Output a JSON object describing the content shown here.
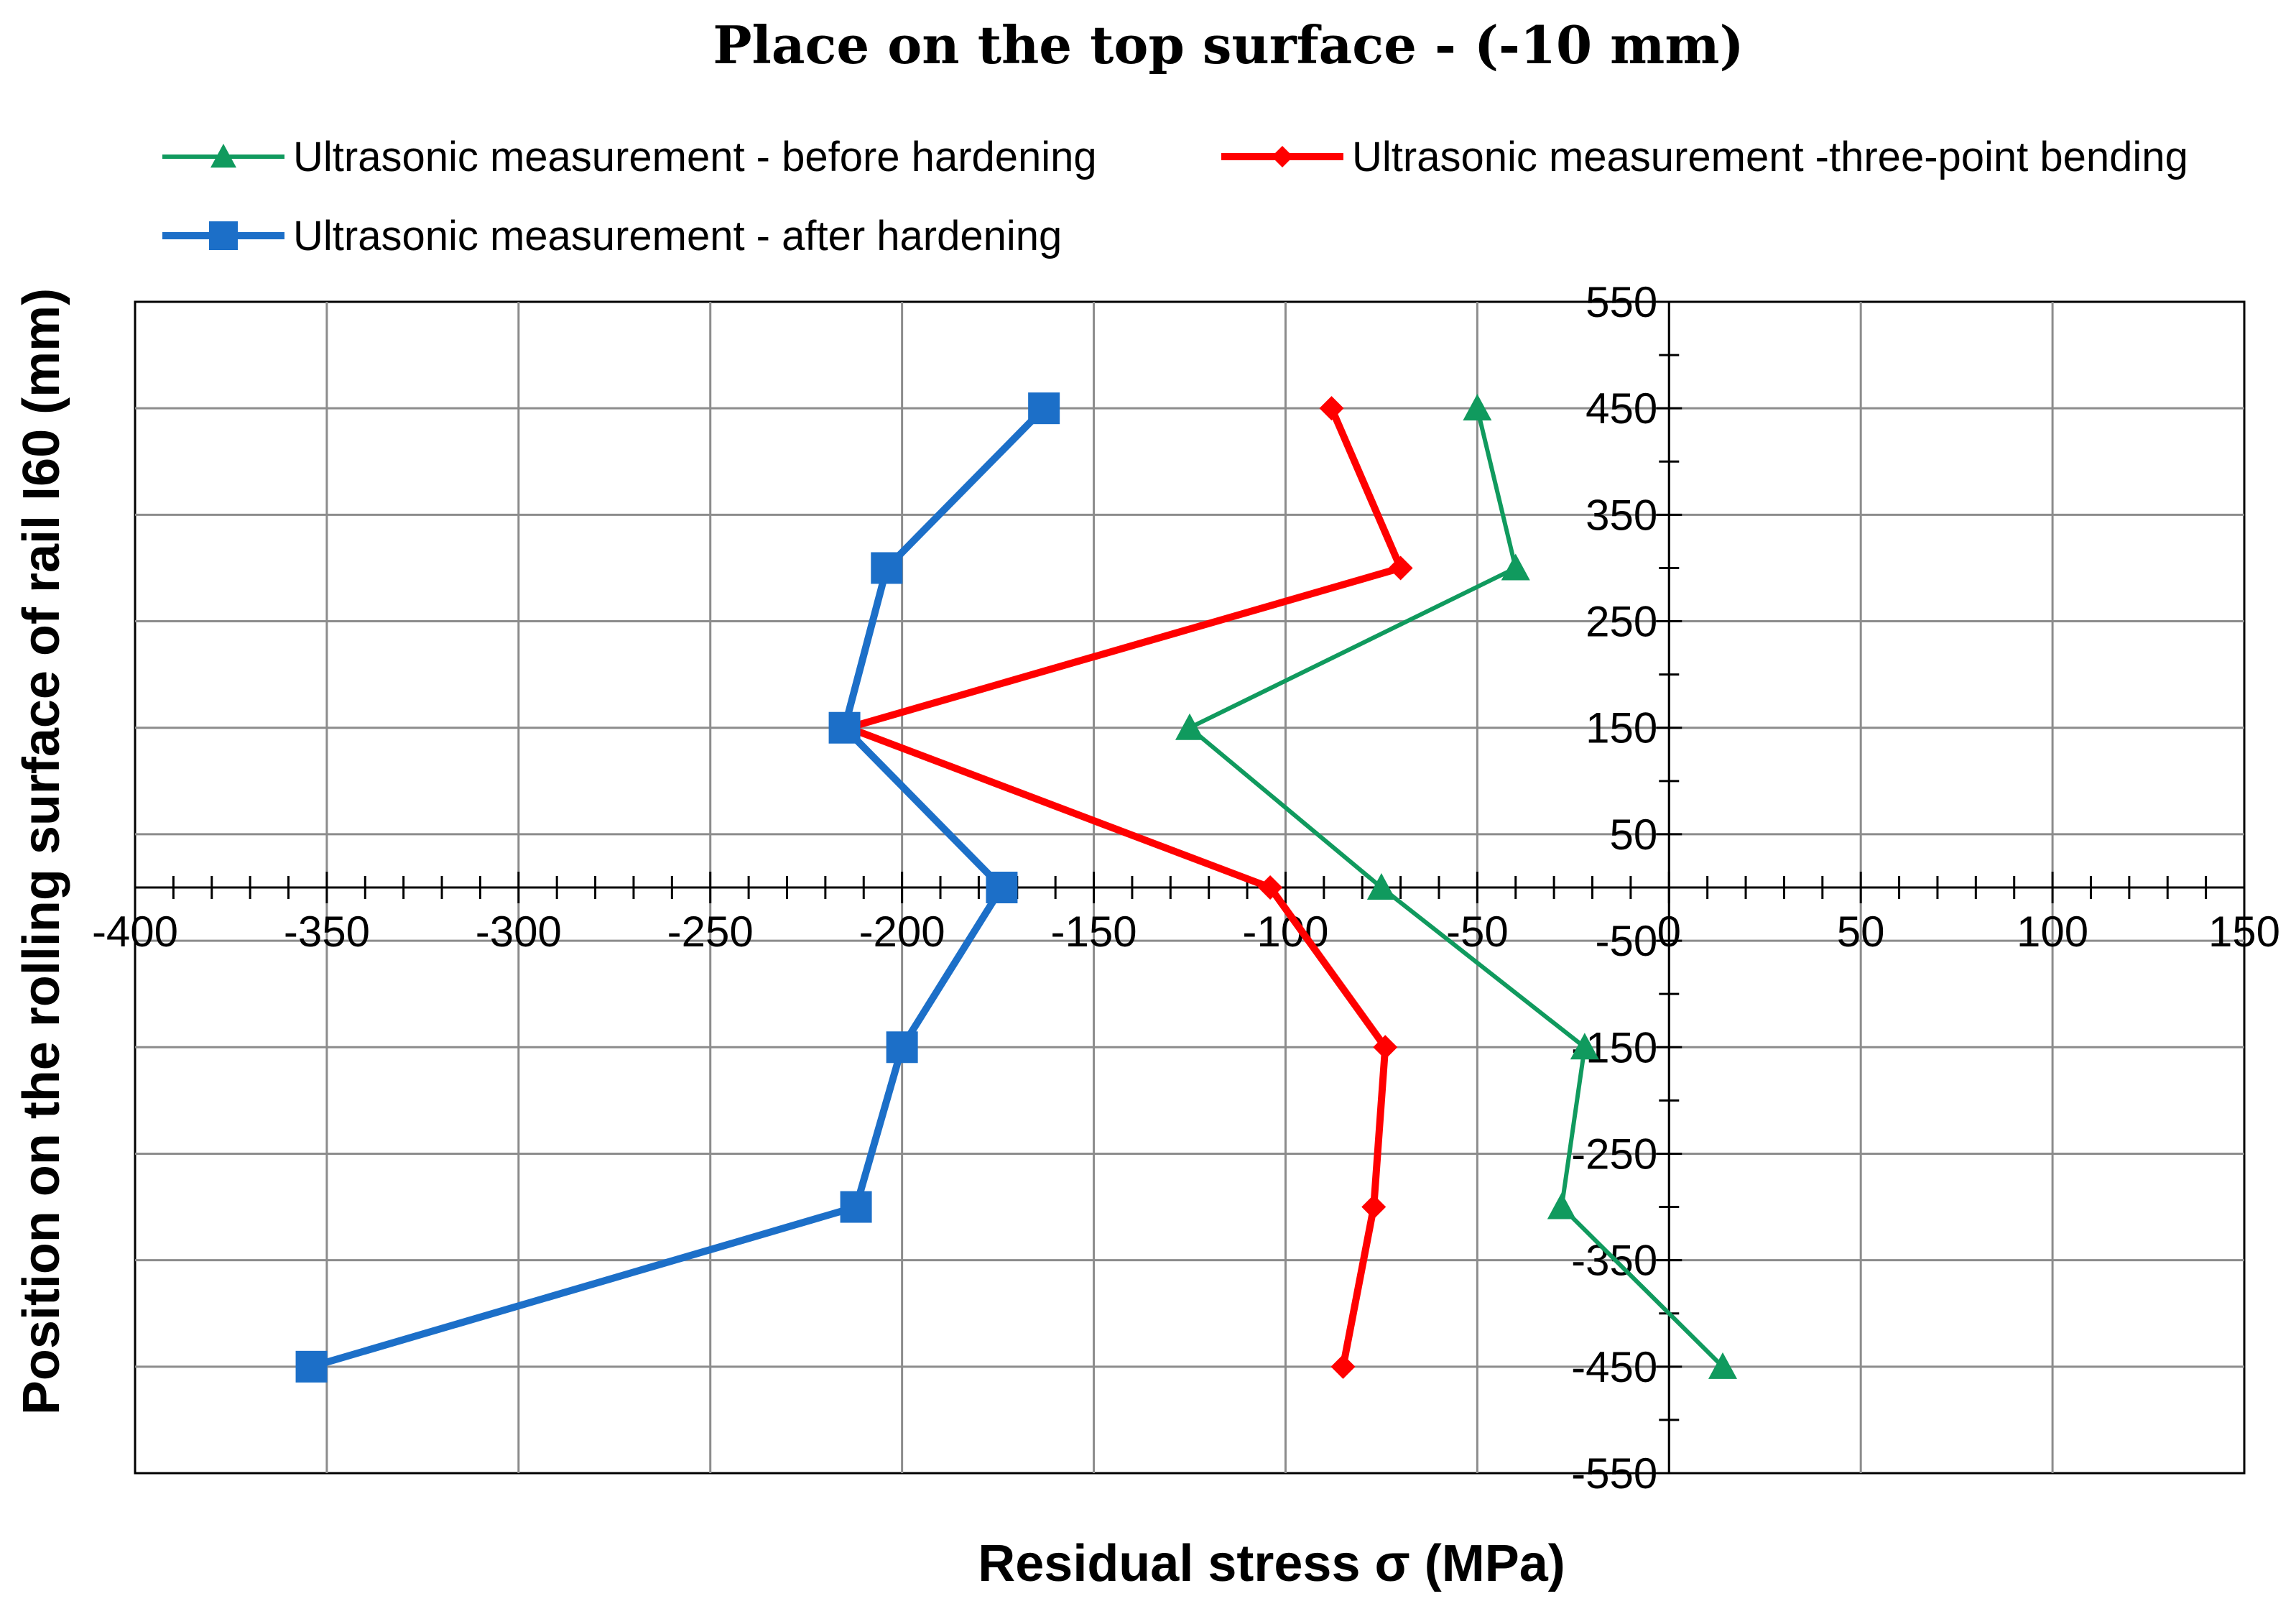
{
  "chart_data": {
    "type": "line",
    "title": "Place on the top surface - (-10 mm)",
    "xlabel": "Residual stress  σ (MPa)",
    "ylabel": "Position on the rolling surface of rail I60 (mm)",
    "xlim": [
      -400,
      150
    ],
    "ylim": [
      -550,
      550
    ],
    "x_ticks": [
      "-400",
      "-350",
      "-300",
      "-250",
      "-200",
      "-150",
      "-100",
      "-50",
      "0",
      "50",
      "100",
      "150"
    ],
    "y_ticks": [
      "550",
      "450",
      "350",
      "250",
      "150",
      "50",
      "-50",
      "-150",
      "-250",
      "-350",
      "-450",
      "-550"
    ],
    "grid": true,
    "legend_position": "top",
    "series": [
      {
        "name": "Ultrasonic measurement - before hardening",
        "color": "#109a5e",
        "marker": "triangle",
        "points": [
          {
            "x": -50,
            "y": 450
          },
          {
            "x": -40,
            "y": 300
          },
          {
            "x": -125,
            "y": 150
          },
          {
            "x": -75,
            "y": 0
          },
          {
            "x": -22,
            "y": -150
          },
          {
            "x": -28,
            "y": -300
          },
          {
            "x": 14,
            "y": -450
          }
        ]
      },
      {
        "name": "Ultrasonic measurement -three-point bending",
        "color": "#ff0000",
        "marker": "diamond",
        "points": [
          {
            "x": -88,
            "y": 450
          },
          {
            "x": -70,
            "y": 300
          },
          {
            "x": -214,
            "y": 150
          },
          {
            "x": -104,
            "y": 0
          },
          {
            "x": -74,
            "y": -150
          },
          {
            "x": -77,
            "y": -300
          },
          {
            "x": -85,
            "y": -450
          }
        ]
      },
      {
        "name": "Ultrasonic measurement - after hardening",
        "color": "#1c6fc8",
        "marker": "square",
        "points": [
          {
            "x": -163,
            "y": 450
          },
          {
            "x": -204,
            "y": 300
          },
          {
            "x": -215,
            "y": 150
          },
          {
            "x": -174,
            "y": 0
          },
          {
            "x": -200,
            "y": -150
          },
          {
            "x": -212,
            "y": -300
          },
          {
            "x": -354,
            "y": -450
          }
        ]
      }
    ]
  }
}
